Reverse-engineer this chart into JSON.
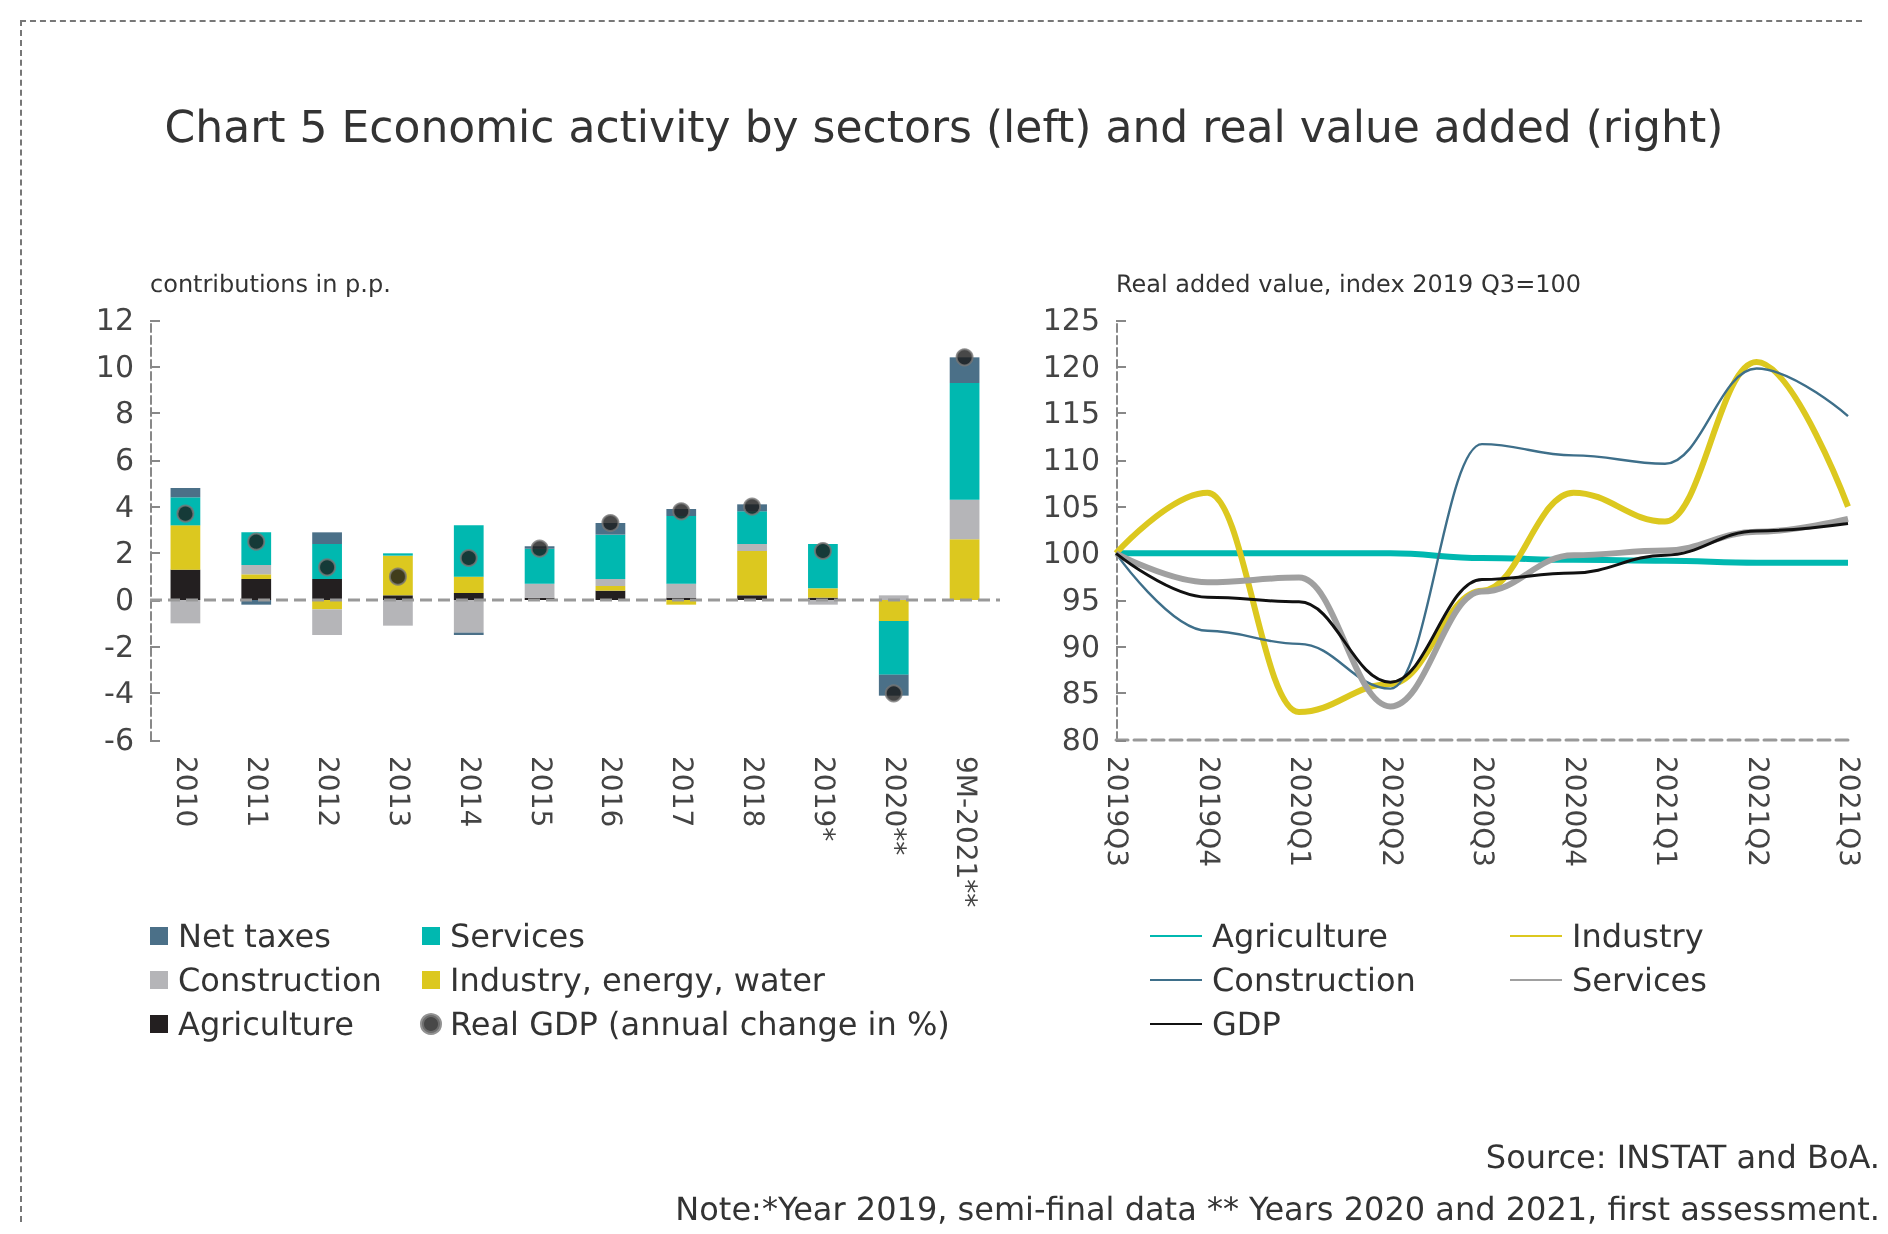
{
  "chart_data": [
    {
      "type": "bar",
      "title": "Chart 5 Economic activity by sectors (left) and real value added (right)",
      "ylabel": "contributions in p.p.",
      "stacked": true,
      "categories": [
        "2010",
        "2011",
        "2012",
        "2013",
        "2014",
        "2015",
        "2016",
        "2017",
        "2018",
        "2019*",
        "2020**",
        "9M-2021**"
      ],
      "series": [
        {
          "name": "Agriculture",
          "color": "#231f20",
          "values": [
            1.3,
            0.9,
            0.9,
            0.2,
            0.3,
            0.1,
            0.4,
            0.1,
            0.2,
            0.1,
            null,
            null
          ]
        },
        {
          "name": "Industry, energy, water",
          "color": "#dcc81f",
          "values": [
            1.9,
            0.2,
            -0.4,
            1.7,
            0.7,
            null,
            0.2,
            -0.2,
            1.9,
            0.4,
            -0.9,
            2.6
          ]
        },
        {
          "name": "Construction",
          "color": "#b5b5b8",
          "values": [
            -1.0,
            0.4,
            -1.1,
            -1.1,
            -1.4,
            0.6,
            0.3,
            0.6,
            0.3,
            -0.2,
            0.2,
            1.7
          ]
        },
        {
          "name": "Services",
          "color": "#00b8b0",
          "values": [
            1.2,
            1.4,
            1.5,
            0.1,
            2.2,
            1.5,
            1.9,
            2.9,
            1.4,
            1.9,
            -2.3,
            5.0
          ]
        },
        {
          "name": "Net taxes",
          "color": "#4b7088",
          "values": [
            0.4,
            -0.2,
            0.5,
            null,
            -0.1,
            0.1,
            0.5,
            0.3,
            0.3,
            null,
            -0.9,
            1.1
          ]
        },
        {
          "name": "Real GDP (annual change in %)",
          "type": "scatter",
          "color": "#1a1a1a",
          "values": [
            3.7,
            2.5,
            1.4,
            1.0,
            1.8,
            2.2,
            3.3,
            3.8,
            4.0,
            2.1,
            -4.0,
            10.4
          ]
        }
      ],
      "ylim": [
        -6,
        12
      ],
      "yticks": [
        -6,
        -4,
        -2,
        0,
        2,
        4,
        6,
        8,
        10,
        12
      ],
      "grid": false,
      "legend": "bottom",
      "marker": "circle",
      "ref_lines": [
        {
          "axis": "y",
          "value": 0,
          "color": "#999999",
          "line_style": "dashed"
        }
      ]
    },
    {
      "type": "line",
      "ylabel": "Real added value, index 2019 Q3=100",
      "categories": [
        "2019Q3",
        "2019Q4",
        "2020Q1",
        "2020Q2",
        "2020Q3",
        "2020Q4",
        "2021Q1",
        "2021Q2",
        "2021Q3"
      ],
      "series": [
        {
          "name": "Agriculture",
          "color": "#00b8b0",
          "values": [
            100,
            100,
            100,
            100,
            99.5,
            99.3,
            99.2,
            99,
            99
          ]
        },
        {
          "name": "Industry",
          "color": "#dcc81f",
          "values": [
            100,
            106.5,
            83,
            86,
            96,
            106.5,
            103.4,
            120.5,
            105
          ]
        },
        {
          "name": "Construction",
          "color": "#3e6f8a",
          "values": [
            100,
            91.7,
            90.3,
            85.5,
            111.7,
            110.5,
            109.6,
            119.8,
            114.7
          ]
        },
        {
          "name": "Services",
          "color": "#a0a0a0",
          "values": [
            100,
            96.9,
            97.4,
            83.6,
            95.9,
            99.8,
            100.3,
            102.3,
            103.7
          ]
        },
        {
          "name": "GDP",
          "color": "#111111",
          "values": [
            100,
            95.3,
            94.8,
            86.2,
            97.2,
            97.9,
            99.8,
            102.4,
            103.2
          ]
        }
      ],
      "ylim": [
        80,
        125
      ],
      "yticks": [
        80,
        85,
        90,
        95,
        100,
        105,
        110,
        115,
        120,
        125
      ],
      "grid": false,
      "legend": "bottom",
      "marker": "none",
      "line_style": "solid",
      "annotations": [
        "Source: INSTAT and BoA.",
        "Note:*Year 2019, semi-final data ** Years 2020 and 2021, first assessment."
      ]
    }
  ]
}
